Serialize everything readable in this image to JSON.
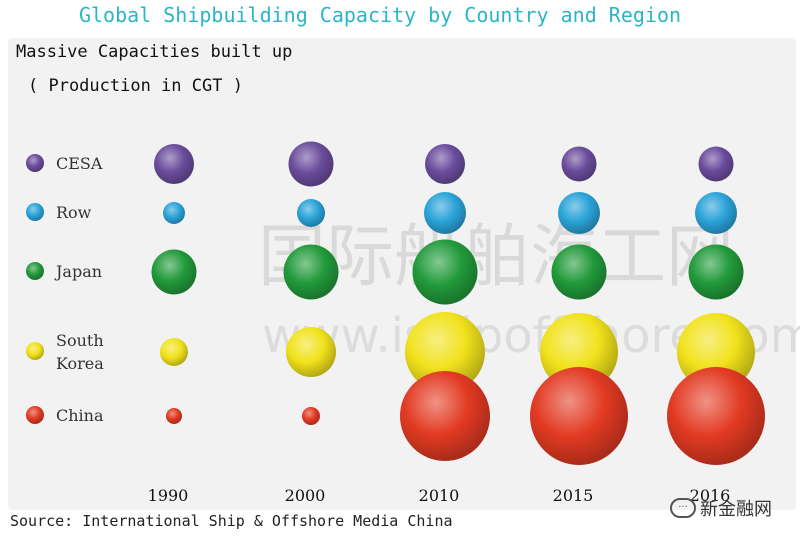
{
  "chart_data": {
    "type": "scatter",
    "title": "Global Shipbuilding Capacity by Country and Region",
    "subtitle_line1": "Massive Capacities built up",
    "subtitle_line2": "( Production in CGT )",
    "x": [
      "1990",
      "2000",
      "2010",
      "2015",
      "2016"
    ],
    "series": [
      {
        "name": "CESA",
        "color": "#6a4c9c",
        "values": [
          0.4,
          0.45,
          0.4,
          0.35,
          0.35
        ]
      },
      {
        "name": "Row",
        "color": "#2aa3d8",
        "values": [
          0.22,
          0.28,
          0.42,
          0.42,
          0.42
        ]
      },
      {
        "name": "Japan",
        "color": "#229a3b",
        "values": [
          0.45,
          0.55,
          0.65,
          0.55,
          0.55
        ]
      },
      {
        "name": "South Korea",
        "label_lines": [
          "South",
          "Korea"
        ],
        "color": "#f1e21c",
        "values": [
          0.28,
          0.5,
          0.8,
          0.78,
          0.78
        ]
      },
      {
        "name": "China",
        "color": "#e23a22",
        "values": [
          0.16,
          0.18,
          0.9,
          0.98,
          0.98
        ]
      }
    ],
    "legend_placement": "left",
    "grid": false
  },
  "watermark": {
    "cn_text": "国际船舶海工网",
    "en_text": "www.ishipoffshore.com"
  },
  "source": "Source: International Ship & Offshore Media China",
  "brand": {
    "icon": "chat-bubble-icon",
    "text": "新金融网"
  }
}
